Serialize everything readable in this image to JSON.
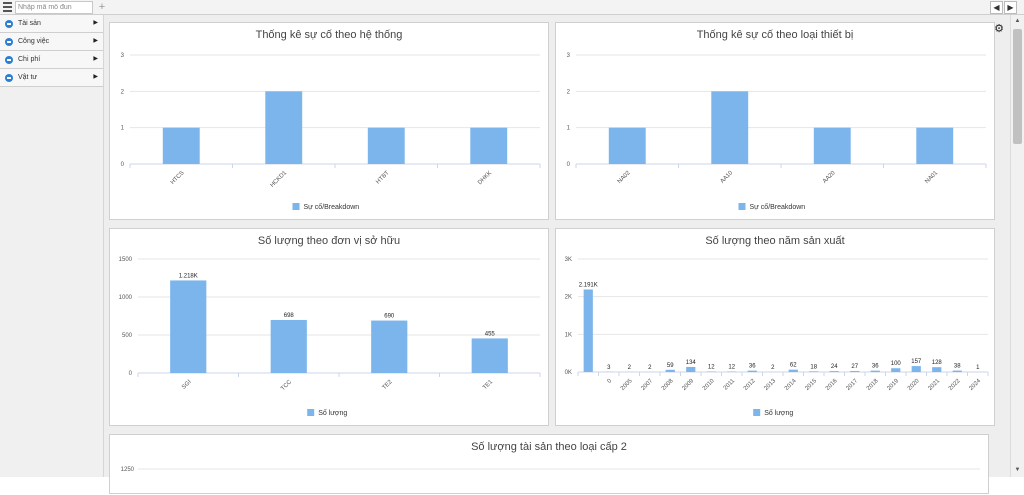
{
  "topbar": {
    "module_placeholder": "Nhập mã mô đun",
    "add_tab": "+",
    "prev": "◀",
    "next": "▶"
  },
  "sidebar": {
    "items": [
      {
        "label": "Tài sản"
      },
      {
        "label": "Công việc"
      },
      {
        "label": "Chi phí"
      },
      {
        "label": "Vật tư"
      }
    ]
  },
  "colors": {
    "bar": "#7cb5ec",
    "grid": "#e6e6e6",
    "accent": "#2a7fd4"
  },
  "charts": {
    "c1": {
      "title": "Thống kê sự cố theo hệ thống"
    },
    "c2": {
      "title": "Thống kê sự cố theo loại thiết bị"
    },
    "c3": {
      "title": "Số lượng theo đơn vị sở hữu"
    },
    "c4": {
      "title": "Số lượng theo năm sản xuất"
    },
    "c5": {
      "title": "Số lượng tài sản theo loại cấp 2"
    }
  },
  "chart_data": [
    {
      "type": "bar",
      "title": "Thống kê sự cố theo hệ thống",
      "categories": [
        "HTCS",
        "HCKD1",
        "HTBT",
        "DHKK"
      ],
      "series": [
        {
          "name": "Sự cố/Breakdown",
          "values": [
            1,
            2,
            1,
            1
          ]
        }
      ],
      "yticks": [
        "0",
        "1",
        "2",
        "3"
      ],
      "ylim": [
        0,
        3
      ],
      "grid": true,
      "legend": "bottom-center"
    },
    {
      "type": "bar",
      "title": "Thống kê sự cố theo loại thiết bị",
      "categories": [
        "NA02",
        "AA10",
        "AA20",
        "NA01"
      ],
      "series": [
        {
          "name": "Sự cố/Breakdown",
          "values": [
            1,
            2,
            1,
            1
          ]
        }
      ],
      "yticks": [
        "0",
        "1",
        "2",
        "3"
      ],
      "ylim": [
        0,
        3
      ],
      "grid": true,
      "legend": "bottom-center"
    },
    {
      "type": "bar",
      "title": "Số lượng theo đơn vị sở hữu",
      "categories": [
        "SGI",
        "TCC",
        "TE2",
        "TE1"
      ],
      "series": [
        {
          "name": "Số lượng",
          "values": [
            1218,
            698,
            690,
            455
          ]
        }
      ],
      "data_labels": [
        "1.218K",
        "698",
        "690",
        "455"
      ],
      "yticks": [
        "0",
        "500",
        "1000",
        "1500"
      ],
      "ylim": [
        0,
        1500
      ],
      "grid": true,
      "legend": "bottom-center"
    },
    {
      "type": "bar",
      "title": "Số lượng theo năm sản xuất",
      "categories": [
        "",
        "0",
        "2005",
        "2007",
        "2008",
        "2009",
        "2010",
        "2011",
        "2012",
        "2013",
        "2014",
        "2015",
        "2016",
        "2017",
        "2018",
        "2019",
        "2020",
        "2021",
        "2022",
        "2024"
      ],
      "series": [
        {
          "name": "Số lượng",
          "values": [
            2191,
            3,
            2,
            2,
            59,
            134,
            12,
            12,
            36,
            2,
            62,
            18,
            24,
            27,
            36,
            100,
            157,
            128,
            38,
            1
          ]
        }
      ],
      "data_labels": [
        "2.191K",
        "3",
        "2",
        "2",
        "59",
        "134",
        "12",
        "12",
        "36",
        "2",
        "62",
        "18",
        "24",
        "27",
        "36",
        "100",
        "157",
        "128",
        "38",
        "1"
      ],
      "yticks": [
        "0K",
        "1K",
        "2K",
        "3K"
      ],
      "ylim": [
        0,
        3000
      ],
      "grid": true,
      "legend": "bottom-center"
    },
    {
      "type": "bar",
      "title": "Số lượng tài sản theo loại cấp 2",
      "categories": [],
      "series": [],
      "yticks": [
        "1250"
      ],
      "ylim": [
        0,
        1250
      ],
      "grid": true
    }
  ],
  "icons": {
    "menu": "hamburger-icon",
    "settings": "gear-icon"
  }
}
